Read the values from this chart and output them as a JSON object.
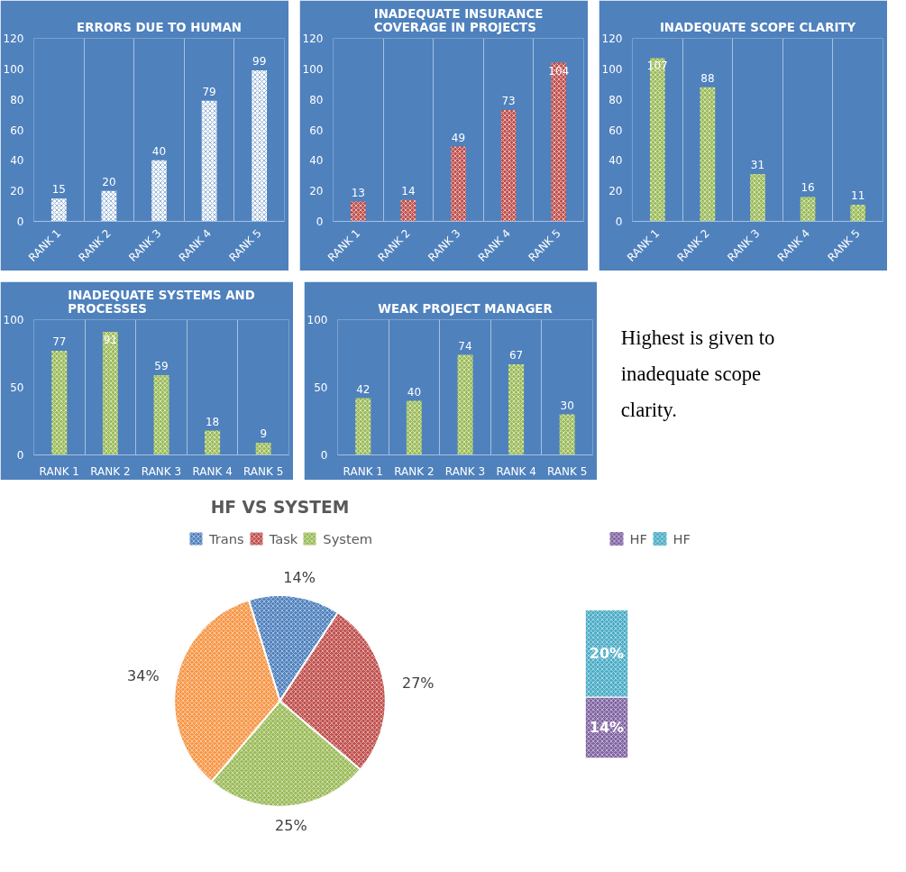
{
  "chart_data": [
    {
      "type": "bar",
      "title": "ERRORS DUE TO HUMAN",
      "categories": [
        "RANK 1",
        "RANK 2",
        "RANK 3",
        "RANK 4",
        "RANK 5"
      ],
      "values": [
        15,
        20,
        40,
        79,
        99
      ],
      "color": "#ffffff",
      "ylim": [
        0,
        120
      ],
      "yticks": [
        0,
        20,
        40,
        60,
        80,
        100,
        120
      ],
      "grid": "x",
      "data_labels": true
    },
    {
      "type": "bar",
      "title": "INADEQUATE INSURANCE COVERAGE IN PROJECTS",
      "categories": [
        "RANK 1",
        "RANK 2",
        "RANK 3",
        "RANK 4",
        "RANK 5"
      ],
      "values": [
        13,
        14,
        49,
        73,
        104
      ],
      "color": "#c0504d",
      "ylim": [
        0,
        120
      ],
      "yticks": [
        0,
        20,
        40,
        60,
        80,
        100,
        120
      ],
      "grid": "x",
      "data_labels": true
    },
    {
      "type": "bar",
      "title": "INADEQUATE SCOPE CLARITY",
      "categories": [
        "RANK 1",
        "RANK 2",
        "RANK 3",
        "RANK 4",
        "RANK 5"
      ],
      "values": [
        107,
        88,
        31,
        16,
        11
      ],
      "color": "#9bbb59",
      "ylim": [
        0,
        120
      ],
      "yticks": [
        0,
        20,
        40,
        60,
        80,
        100,
        120
      ],
      "grid": "x",
      "data_labels": true
    },
    {
      "type": "bar",
      "title": "INADEQUATE SYSTEMS AND PROCESSES",
      "categories": [
        "RANK 1",
        "RANK 2",
        "RANK 3",
        "RANK 4",
        "RANK 5"
      ],
      "values": [
        77,
        91,
        59,
        18,
        9
      ],
      "color": "#9bbb59",
      "ylim": [
        0,
        100
      ],
      "yticks": [
        0,
        50,
        100
      ],
      "grid": "x",
      "data_labels": true
    },
    {
      "type": "bar",
      "title": "WEAK PROJECT MANAGER",
      "categories": [
        "RANK 1",
        "RANK 2",
        "RANK 3",
        "RANK 4",
        "RANK 5"
      ],
      "values": [
        42,
        40,
        74,
        67,
        30
      ],
      "color": "#9bbb59",
      "ylim": [
        0,
        100
      ],
      "yticks": [
        0,
        50,
        100
      ],
      "grid": "x",
      "data_labels": true
    },
    {
      "type": "other",
      "annotations": [
        "Highest is given to inadequate scope clarity."
      ]
    },
    {
      "type": "pie",
      "title": "HF VS SYSTEM",
      "categories": [
        "Trans",
        "Task",
        "System",
        null
      ],
      "values": [
        14,
        27,
        25,
        34
      ],
      "colors": [
        "#4f81bd",
        "#c0504d",
        "#9bbb59",
        "#f79646"
      ],
      "value_labels": [
        "14%",
        "27%",
        "25%",
        "34%"
      ],
      "legend": "top"
    },
    {
      "type": "bar",
      "stacked": true,
      "categories": [
        null
      ],
      "tick_labels": false,
      "legend": "top",
      "series": [
        {
          "name": "HF",
          "color": "#8064a2",
          "values": [
            14
          ],
          "value_labels": [
            "14%"
          ]
        },
        {
          "name": "HF",
          "color": "#4bacc6",
          "values": [
            20
          ],
          "value_labels": [
            "20%"
          ]
        }
      ]
    }
  ]
}
